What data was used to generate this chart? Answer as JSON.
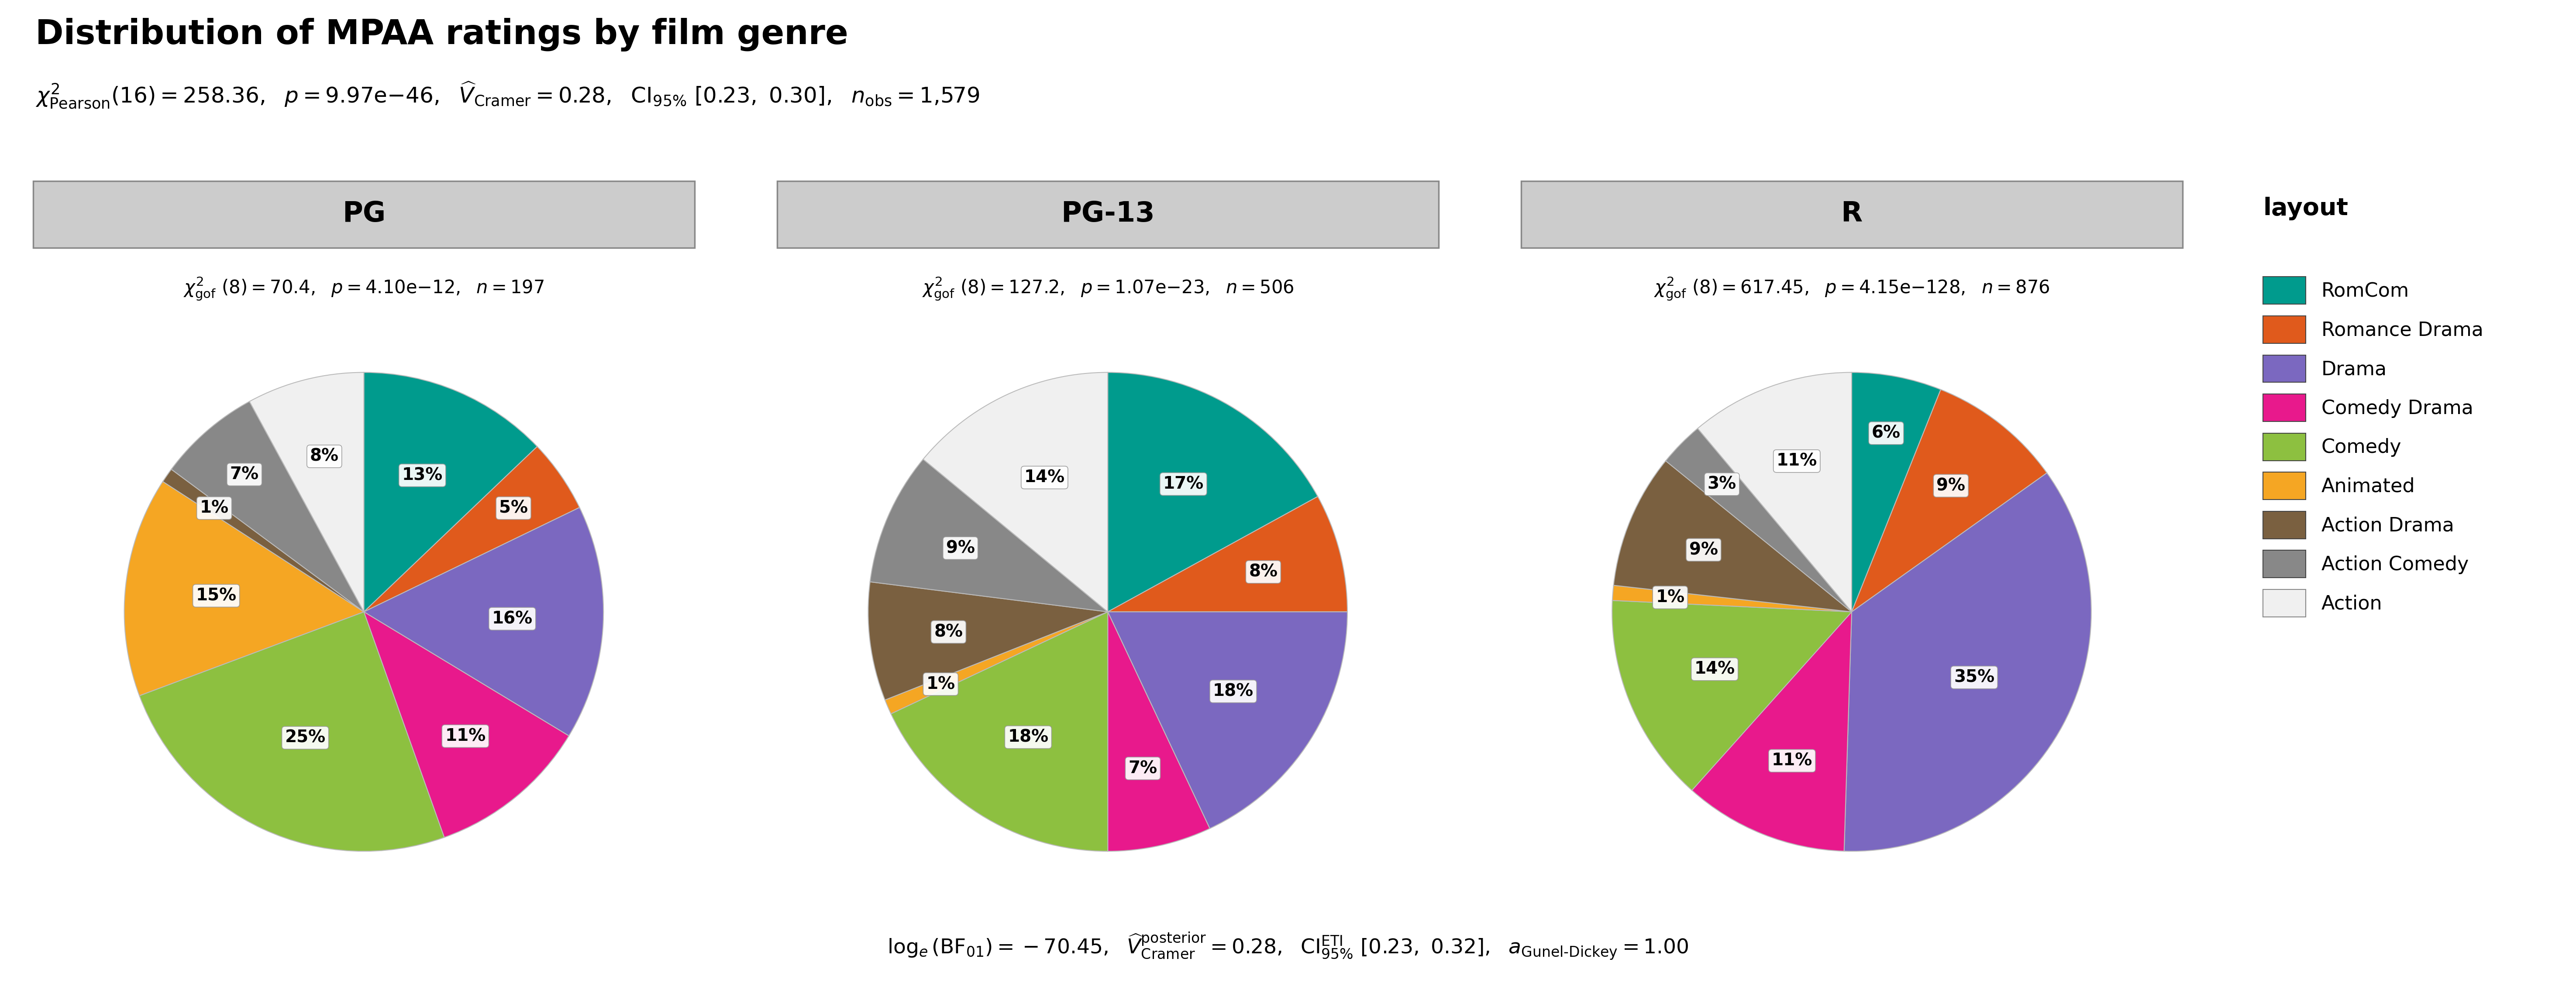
{
  "title": "Distribution of MPAA ratings by film genre",
  "categories": [
    "PG",
    "PG-13",
    "R"
  ],
  "panel_stats": [
    "70.4, 4.10e-12, 197",
    "127.2, 1.07e-23, 506",
    "617.45, 4.15e-128, 876"
  ],
  "genres": [
    "RomCom",
    "Romance Drama",
    "Drama",
    "Comedy Drama",
    "Comedy",
    "Animated",
    "Action Drama",
    "Action Comedy",
    "Action"
  ],
  "pie_colors": [
    "#009B8D",
    "#E05A1C",
    "#7B68C0",
    "#E8198C",
    "#8DC040",
    "#F5A623",
    "#7A6040",
    "#888888",
    "#F0F0F0"
  ],
  "pie_data": {
    "PG": [
      13,
      5,
      16,
      11,
      25,
      15,
      1,
      7,
      8
    ],
    "PG-13": [
      17,
      8,
      18,
      7,
      18,
      1,
      8,
      9,
      14
    ],
    "R": [
      6,
      9,
      35,
      11,
      14,
      1,
      9,
      3,
      11
    ]
  },
  "pie_labels": {
    "PG": [
      "13%",
      "5%",
      "16%",
      "11%",
      "25%",
      "15%",
      "1%",
      "7%",
      "8%"
    ],
    "PG-13": [
      "17%",
      "8%",
      "18%",
      "7%",
      "18%",
      "1%",
      "8%",
      "9%",
      "14%"
    ],
    "R": [
      "6%",
      "9%",
      "35%",
      "11%",
      "14%",
      "1%",
      "9%",
      "3%",
      "11%"
    ]
  },
  "bg_color": "#FFFFFF",
  "header_bg": "#CCCCCC",
  "header_edge": "#888888"
}
